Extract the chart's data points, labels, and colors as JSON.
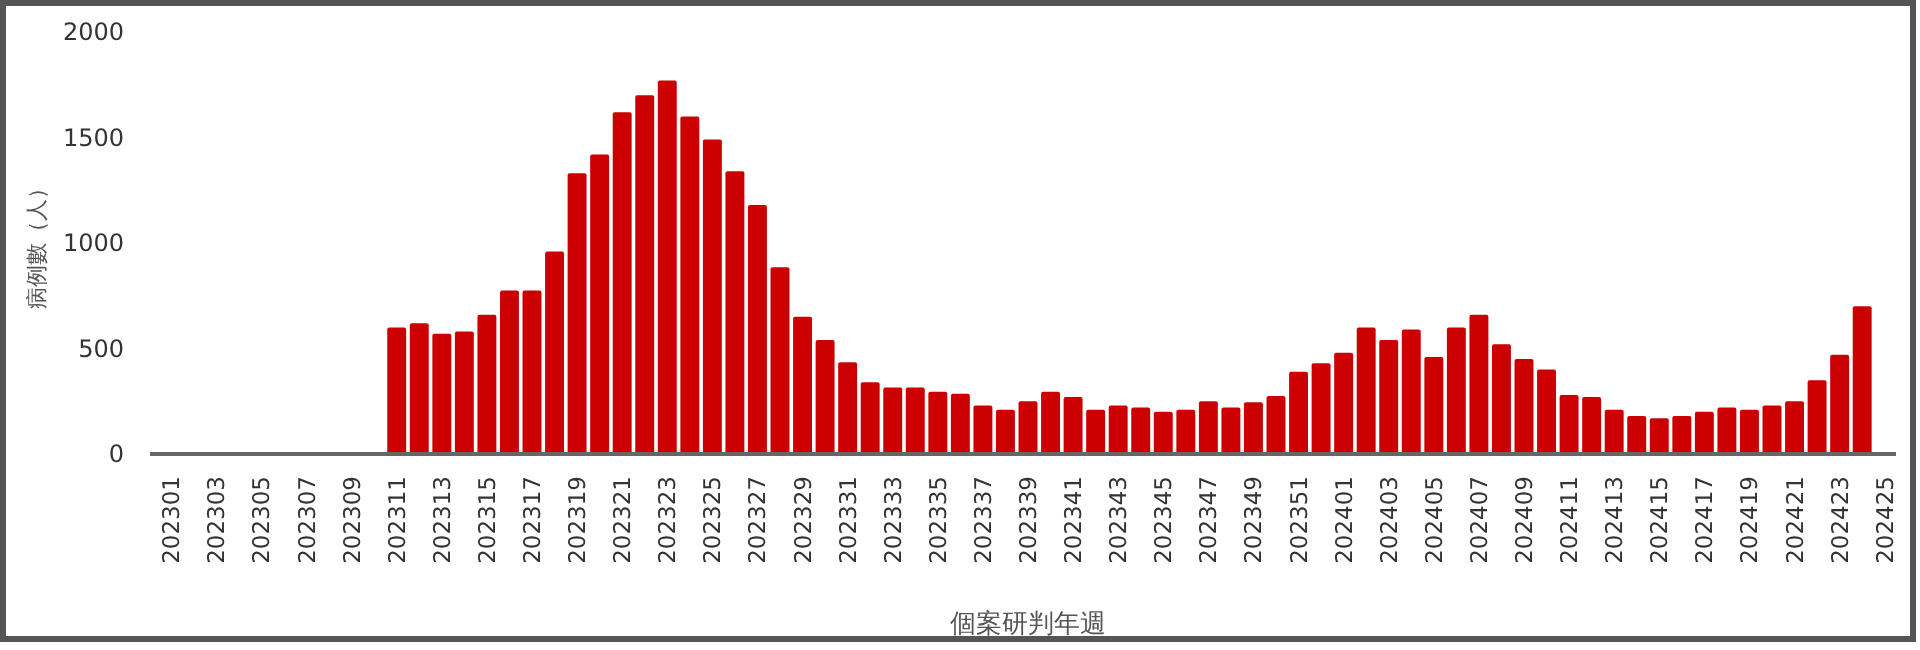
{
  "chart_data": {
    "type": "bar",
    "xlabel": "個案研判年週",
    "ylabel": "病例數（人）",
    "categories": [
      "202301",
      null,
      "202303",
      null,
      "202305",
      null,
      "202307",
      null,
      "202309",
      null,
      "202311",
      null,
      "202313",
      null,
      "202315",
      null,
      "202317",
      null,
      "202319",
      null,
      "202321",
      null,
      "202323",
      null,
      "202325",
      null,
      "202327",
      null,
      "202329",
      null,
      "202331",
      null,
      "202333",
      null,
      "202335",
      null,
      "202337",
      null,
      "202339",
      null,
      "202341",
      null,
      "202343",
      null,
      "202345",
      null,
      "202347",
      null,
      "202349",
      null,
      "202351",
      null,
      "202401",
      null,
      "202403",
      null,
      "202405",
      null,
      "202407",
      null,
      "202409",
      null,
      "202411",
      null,
      "202413",
      null,
      "202415",
      null,
      "202417",
      null,
      "202419",
      null,
      "202421",
      null,
      "202423",
      null,
      "202425"
    ],
    "values": [
      0,
      0,
      0,
      0,
      0,
      0,
      0,
      0,
      0,
      0,
      600,
      620,
      570,
      580,
      660,
      775,
      775,
      960,
      1330,
      1420,
      1620,
      1700,
      1770,
      1600,
      1490,
      1340,
      1180,
      885,
      650,
      540,
      435,
      340,
      315,
      315,
      295,
      285,
      230,
      210,
      250,
      295,
      270,
      210,
      230,
      220,
      200,
      210,
      250,
      220,
      245,
      275,
      390,
      430,
      480,
      600,
      540,
      590,
      460,
      600,
      660,
      520,
      450,
      400,
      280,
      270,
      210,
      180,
      170,
      180,
      200,
      220,
      210,
      230,
      250,
      350,
      470,
      700,
      null
    ],
    "color": "#cc0000",
    "ylim": [
      0,
      2000
    ],
    "yticks": [
      0,
      500,
      1000,
      1500,
      2000
    ]
  }
}
